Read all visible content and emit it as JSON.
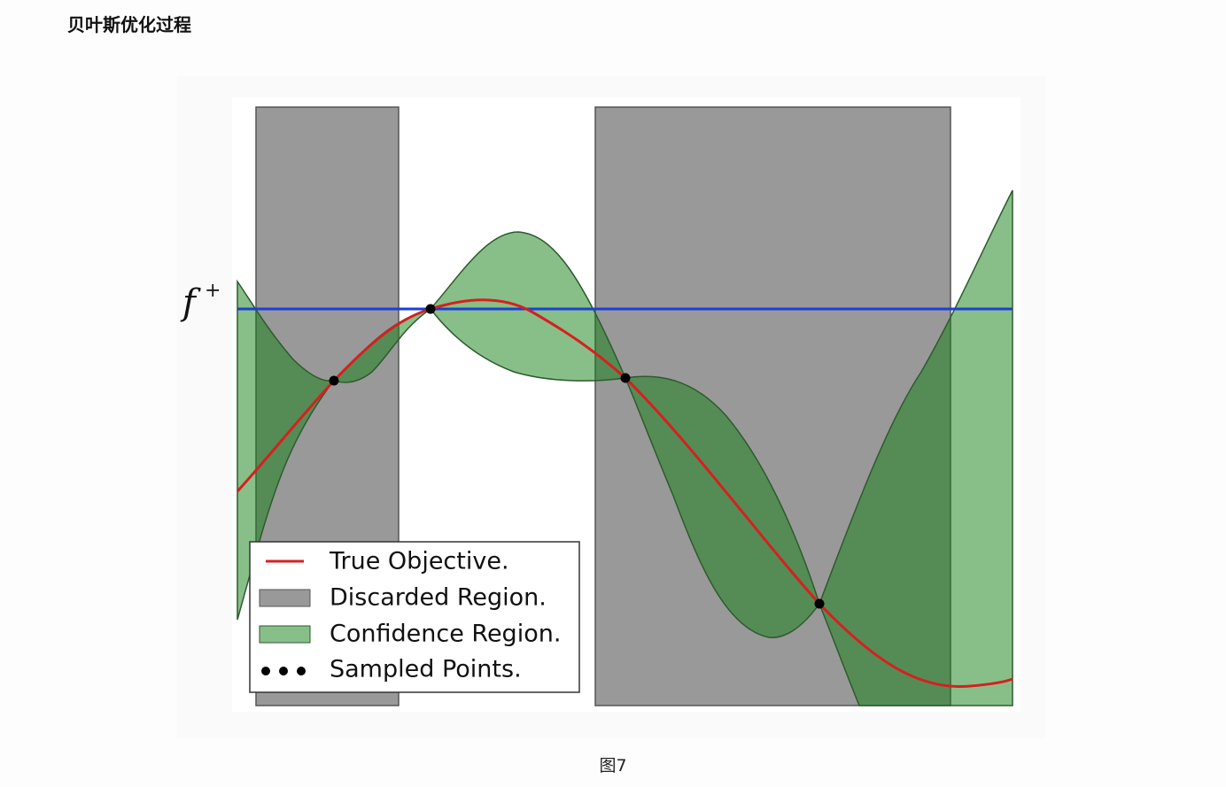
{
  "header": {
    "title": "贝叶斯优化过程"
  },
  "figure": {
    "threshold_label": {
      "symbol": "f",
      "superscript": "+"
    },
    "legend": [
      "True Objective.",
      "Discarded Region.",
      "Confidence Region.",
      "Sampled Points."
    ],
    "caption": "图7"
  }
}
